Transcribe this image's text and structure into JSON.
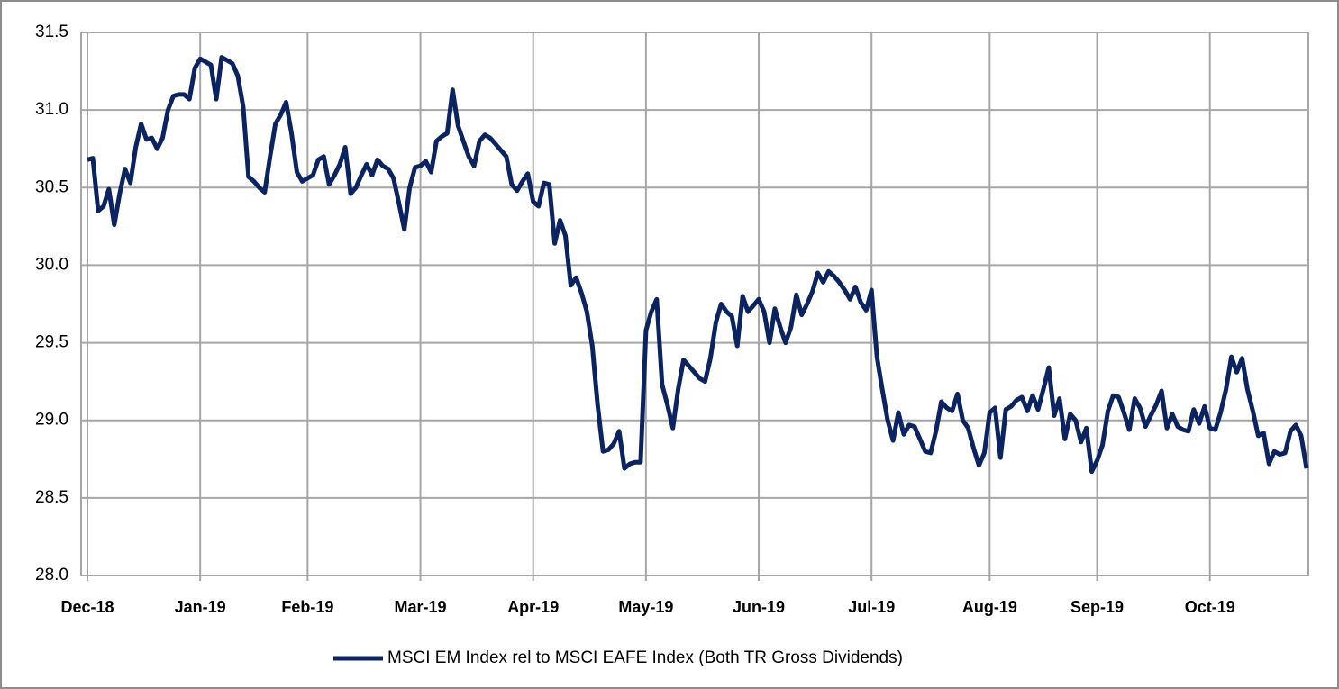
{
  "chart_data": {
    "type": "line",
    "categories": [
      "Dec-18",
      null,
      null,
      null,
      null,
      null,
      null,
      null,
      null,
      null,
      null,
      null,
      null,
      null,
      null,
      null,
      null,
      null,
      null,
      null,
      null,
      "Jan-19",
      null,
      null,
      null,
      null,
      null,
      null,
      null,
      null,
      null,
      null,
      null,
      null,
      null,
      null,
      null,
      null,
      null,
      null,
      null,
      "Feb-19",
      null,
      null,
      null,
      null,
      null,
      null,
      null,
      null,
      null,
      null,
      null,
      null,
      null,
      null,
      null,
      null,
      null,
      null,
      null,
      null,
      "Mar-19",
      null,
      null,
      null,
      null,
      null,
      null,
      null,
      null,
      null,
      null,
      null,
      null,
      null,
      null,
      null,
      null,
      null,
      null,
      null,
      null,
      "Apr-19",
      null,
      null,
      null,
      null,
      null,
      null,
      null,
      null,
      null,
      null,
      null,
      null,
      null,
      null,
      null,
      null,
      null,
      null,
      null,
      null,
      "May-19",
      null,
      null,
      null,
      null,
      null,
      null,
      null,
      null,
      null,
      null,
      null,
      null,
      null,
      null,
      null,
      null,
      null,
      null,
      null,
      null,
      "Jun-19",
      null,
      null,
      null,
      null,
      null,
      null,
      null,
      null,
      null,
      null,
      null,
      null,
      null,
      null,
      null,
      null,
      null,
      null,
      null,
      null,
      "Jul-19",
      null,
      null,
      null,
      null,
      null,
      null,
      null,
      null,
      null,
      null,
      null,
      null,
      null,
      null,
      null,
      null,
      null,
      null,
      null,
      null,
      null,
      "Aug-19",
      null,
      null,
      null,
      null,
      null,
      null,
      null,
      null,
      null,
      null,
      null,
      null,
      null,
      null,
      null,
      null,
      null,
      null,
      null,
      "Sep-19",
      null,
      null,
      null,
      null,
      null,
      null,
      null,
      null,
      null,
      null,
      null,
      null,
      null,
      null,
      null,
      null,
      null,
      null,
      null,
      null,
      "Oct-19",
      null,
      null,
      null,
      null,
      null,
      null,
      null,
      null,
      null,
      null,
      null,
      null,
      null,
      null,
      null,
      null,
      null,
      null
    ],
    "series": [
      {
        "name": "MSCI EM Index rel to MSCI EAFE Index (Both TR Gross Dividends)",
        "color": "#0b2461",
        "values": [
          30.68,
          30.69,
          30.35,
          30.38,
          30.49,
          30.26,
          30.46,
          30.62,
          30.53,
          30.76,
          30.91,
          30.81,
          30.82,
          30.75,
          30.82,
          31.0,
          31.09,
          31.1,
          31.1,
          31.07,
          31.27,
          31.33,
          31.31,
          31.29,
          31.07,
          31.34,
          31.32,
          31.3,
          31.22,
          31.02,
          30.57,
          30.54,
          30.5,
          30.47,
          30.7,
          30.91,
          30.97,
          31.05,
          30.85,
          30.6,
          30.54,
          30.56,
          30.58,
          30.68,
          30.7,
          30.52,
          30.58,
          30.65,
          30.76,
          30.46,
          30.5,
          30.58,
          30.65,
          30.58,
          30.68,
          30.64,
          30.62,
          30.56,
          30.4,
          30.23,
          30.5,
          30.63,
          30.64,
          30.67,
          30.6,
          30.8,
          30.83,
          30.85,
          31.13,
          30.9,
          30.8,
          30.7,
          30.64,
          30.8,
          30.84,
          30.82,
          30.78,
          30.74,
          30.7,
          30.52,
          30.48,
          30.54,
          30.59,
          30.41,
          30.38,
          30.53,
          30.52,
          30.14,
          30.29,
          30.19,
          29.87,
          29.92,
          29.82,
          29.7,
          29.48,
          29.1,
          28.8,
          28.81,
          28.85,
          28.93,
          28.69,
          28.72,
          28.73,
          28.73,
          29.58,
          29.7,
          29.78,
          29.23,
          29.1,
          28.95,
          29.2,
          29.39,
          29.35,
          29.31,
          29.27,
          29.25,
          29.4,
          29.63,
          29.75,
          29.7,
          29.67,
          29.48,
          29.8,
          29.7,
          29.74,
          29.78,
          29.7,
          29.5,
          29.72,
          29.6,
          29.5,
          29.6,
          29.81,
          29.68,
          29.75,
          29.83,
          29.95,
          29.89,
          29.96,
          29.93,
          29.89,
          29.84,
          29.78,
          29.86,
          29.76,
          29.71,
          29.84,
          29.41,
          29.2,
          29.0,
          28.87,
          29.05,
          28.91,
          28.97,
          28.96,
          28.88,
          28.8,
          28.79,
          28.93,
          29.12,
          29.08,
          29.06,
          29.17,
          29.0,
          28.95,
          28.82,
          28.71,
          28.79,
          29.05,
          29.08,
          28.76,
          29.07,
          29.09,
          29.13,
          29.15,
          29.06,
          29.16,
          29.07,
          29.2,
          29.34,
          29.03,
          29.14,
          28.88,
          29.04,
          29.0,
          28.86,
          28.95,
          28.67,
          28.74,
          28.84,
          29.06,
          29.16,
          29.15,
          29.05,
          28.94,
          29.14,
          29.08,
          28.96,
          29.03,
          29.1,
          29.19,
          28.95,
          29.04,
          28.96,
          28.94,
          28.93,
          29.07,
          28.98,
          29.09,
          28.95,
          28.94,
          29.05,
          29.2,
          29.41,
          29.31,
          29.4,
          29.2,
          29.06,
          28.9,
          28.92,
          28.72,
          28.8,
          28.78,
          28.79,
          28.93,
          28.97,
          28.9,
          28.69
        ]
      }
    ],
    "ylim": [
      28.0,
      31.5
    ],
    "yticks": [
      {
        "value": 28,
        "label": "28.0"
      },
      28.5,
      {
        "value": 29,
        "label": "29.0"
      },
      29.5,
      {
        "value": 30,
        "label": "30.0"
      },
      30.5,
      {
        "value": 31,
        "label": "31.0"
      },
      31.5
    ],
    "grid": true,
    "legend": "bottom"
  }
}
